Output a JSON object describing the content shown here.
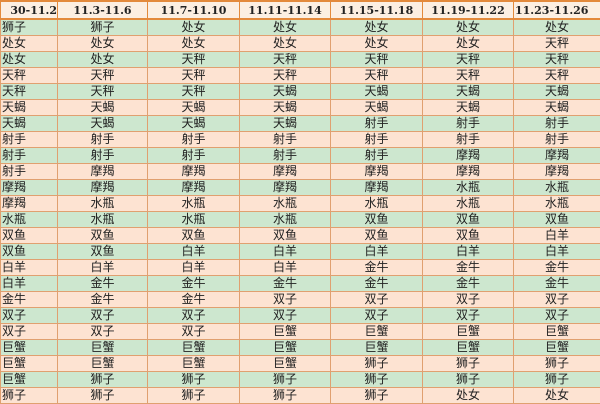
{
  "headers": [
    "30-11.2",
    "11.3-11.6",
    "11.7-11.10",
    "11.11-11.14",
    "11.15-11.18",
    "11.19-11.22",
    "11.23-11.26"
  ],
  "colors": {
    "row_green": "#cde7cf",
    "row_peach": "#fde3d2",
    "border": "#e38a3c"
  },
  "rows": [
    [
      "狮子",
      "狮子",
      "处女",
      "处女",
      "处女",
      "处女",
      "处女"
    ],
    [
      "处女",
      "处女",
      "处女",
      "处女",
      "处女",
      "处女",
      "天秤"
    ],
    [
      "处女",
      "处女",
      "天秤",
      "天秤",
      "天秤",
      "天秤",
      "天秤"
    ],
    [
      "天秤",
      "天秤",
      "天秤",
      "天秤",
      "天秤",
      "天秤",
      "天秤"
    ],
    [
      "天秤",
      "天秤",
      "天秤",
      "天蝎",
      "天蝎",
      "天蝎",
      "天蝎"
    ],
    [
      "天蝎",
      "天蝎",
      "天蝎",
      "天蝎",
      "天蝎",
      "天蝎",
      "天蝎"
    ],
    [
      "天蝎",
      "天蝎",
      "天蝎",
      "天蝎",
      "射手",
      "射手",
      "射手"
    ],
    [
      "射手",
      "射手",
      "射手",
      "射手",
      "射手",
      "射手",
      "射手"
    ],
    [
      "射手",
      "射手",
      "射手",
      "射手",
      "射手",
      "摩羯",
      "摩羯"
    ],
    [
      "射手",
      "摩羯",
      "摩羯",
      "摩羯",
      "摩羯",
      "摩羯",
      "摩羯"
    ],
    [
      "摩羯",
      "摩羯",
      "摩羯",
      "摩羯",
      "摩羯",
      "水瓶",
      "水瓶"
    ],
    [
      "摩羯",
      "水瓶",
      "水瓶",
      "水瓶",
      "水瓶",
      "水瓶",
      "水瓶"
    ],
    [
      "水瓶",
      "水瓶",
      "水瓶",
      "水瓶",
      "双鱼",
      "双鱼",
      "双鱼"
    ],
    [
      "双鱼",
      "双鱼",
      "双鱼",
      "双鱼",
      "双鱼",
      "双鱼",
      "白羊"
    ],
    [
      "双鱼",
      "双鱼",
      "白羊",
      "白羊",
      "白羊",
      "白羊",
      "白羊"
    ],
    [
      "白羊",
      "白羊",
      "白羊",
      "白羊",
      "金牛",
      "金牛",
      "金牛"
    ],
    [
      "白羊",
      "金牛",
      "金牛",
      "金牛",
      "金牛",
      "金牛",
      "金牛"
    ],
    [
      "金牛",
      "金牛",
      "金牛",
      "双子",
      "双子",
      "双子",
      "双子"
    ],
    [
      "双子",
      "双子",
      "双子",
      "双子",
      "双子",
      "双子",
      "双子"
    ],
    [
      "双子",
      "双子",
      "双子",
      "巨蟹",
      "巨蟹",
      "巨蟹",
      "巨蟹"
    ],
    [
      "巨蟹",
      "巨蟹",
      "巨蟹",
      "巨蟹",
      "巨蟹",
      "巨蟹",
      "巨蟹"
    ],
    [
      "巨蟹",
      "巨蟹",
      "巨蟹",
      "巨蟹",
      "狮子",
      "狮子",
      "狮子"
    ],
    [
      "巨蟹",
      "狮子",
      "狮子",
      "狮子",
      "狮子",
      "狮子",
      "狮子"
    ],
    [
      "狮子",
      "狮子",
      "狮子",
      "狮子",
      "狮子",
      "处女",
      "处女"
    ]
  ]
}
